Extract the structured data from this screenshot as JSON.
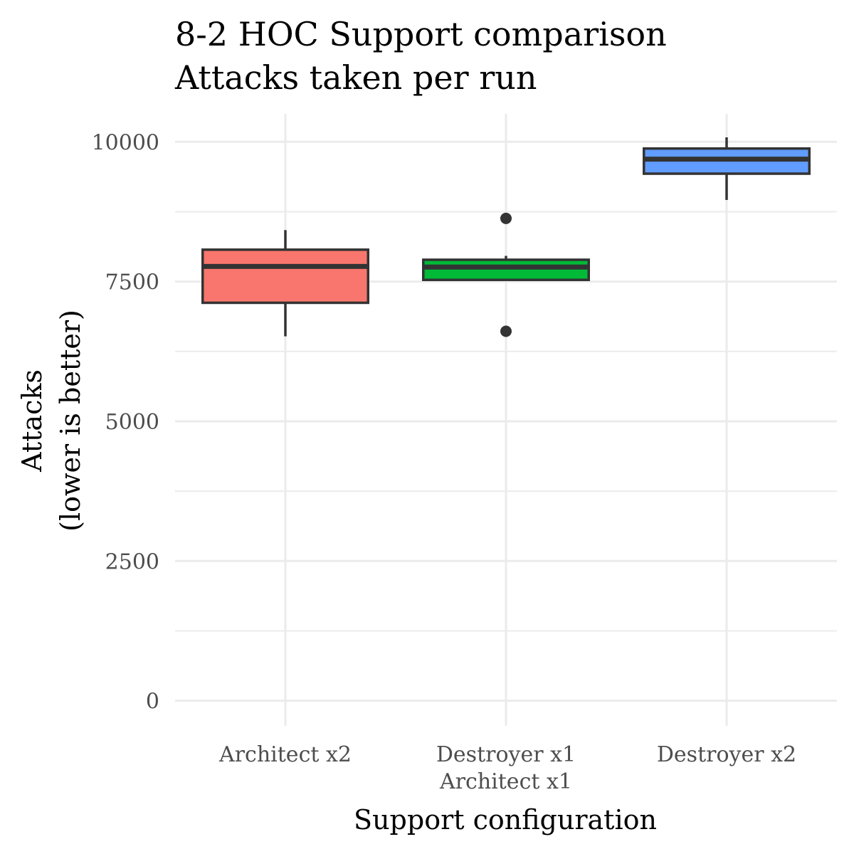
{
  "chart_data": {
    "type": "box",
    "title": "8-2 HOC Support comparison",
    "subtitle": "Attacks taken per run",
    "xlabel": "Support configuration",
    "ylabel_lines": [
      "Attacks",
      "(lower is better)"
    ],
    "ylim": [
      -450,
      10500
    ],
    "y_ticks": [
      0,
      2500,
      5000,
      7500,
      10000
    ],
    "y_tick_labels": [
      "0",
      "2500",
      "5000",
      "7500",
      "10000"
    ],
    "y_minor_ticks": [
      1250,
      3750,
      6250,
      8750
    ],
    "grid": true,
    "legend": "none",
    "categories": [
      {
        "label_lines": [
          "Architect x2"
        ],
        "color": "#F8766D",
        "whisker_low": 6520,
        "q1": 7120,
        "median": 7770,
        "q3": 8070,
        "whisker_high": 8420,
        "outliers": []
      },
      {
        "label_lines": [
          "Destroyer x1",
          "Architect x1"
        ],
        "color": "#00BA38",
        "whisker_low": 7530,
        "q1": 7530,
        "median": 7760,
        "q3": 7890,
        "whisker_high": 7960,
        "outliers": [
          8630,
          6610
        ]
      },
      {
        "label_lines": [
          "Destroyer x2"
        ],
        "color": "#619CFF",
        "whisker_low": 8960,
        "q1": 9430,
        "median": 9690,
        "q3": 9880,
        "whisker_high": 10080,
        "outliers": []
      }
    ]
  }
}
